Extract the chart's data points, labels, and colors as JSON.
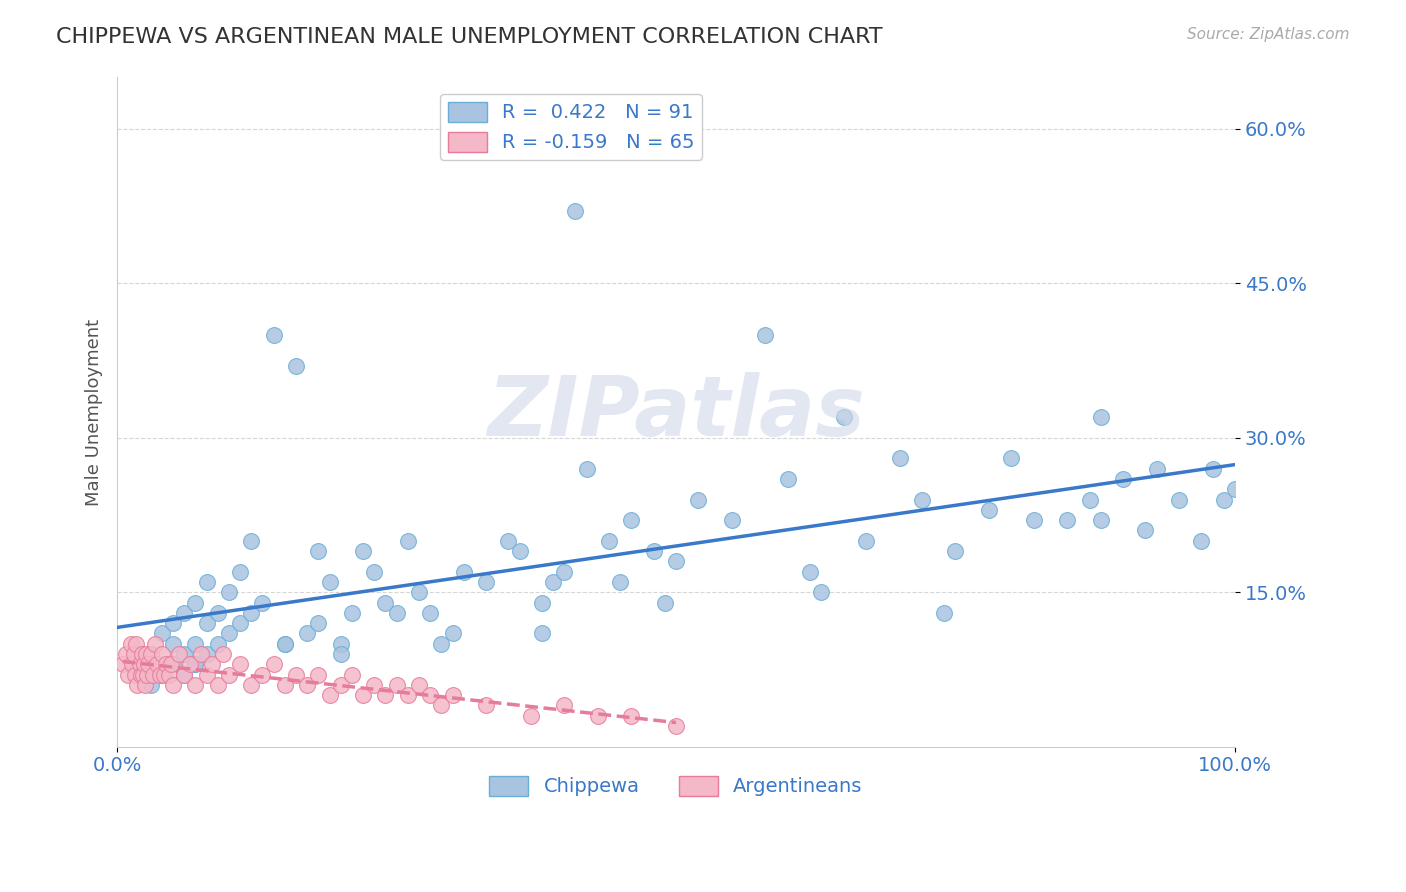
{
  "title": "CHIPPEWA VS ARGENTINEAN MALE UNEMPLOYMENT CORRELATION CHART",
  "source_text": "Source: ZipAtlas.com",
  "ylabel": "Male Unemployment",
  "xlim": [
    0.0,
    1.0
  ],
  "ylim": [
    0.0,
    0.65
  ],
  "legend_r1": "R =  0.422   N = 91",
  "legend_r2": "R = -0.159   N = 65",
  "chippewa_color": "#a8c4e0",
  "chippewa_edge": "#6aaed6",
  "argentinean_color": "#f4b8c8",
  "argentinean_edge": "#e87a9a",
  "trendline_blue": "#3a78c9",
  "trendline_pink": "#e87a9a",
  "background_color": "#ffffff",
  "grid_color": "#cccccc",
  "axis_label_color": "#3a78c9",
  "chippewa_x": [
    0.02,
    0.03,
    0.03,
    0.04,
    0.04,
    0.05,
    0.05,
    0.05,
    0.06,
    0.06,
    0.06,
    0.07,
    0.07,
    0.07,
    0.08,
    0.08,
    0.08,
    0.09,
    0.09,
    0.1,
    0.1,
    0.11,
    0.11,
    0.12,
    0.12,
    0.13,
    0.14,
    0.15,
    0.16,
    0.17,
    0.18,
    0.18,
    0.19,
    0.2,
    0.21,
    0.22,
    0.23,
    0.24,
    0.25,
    0.26,
    0.27,
    0.28,
    0.3,
    0.31,
    0.33,
    0.35,
    0.36,
    0.38,
    0.39,
    0.4,
    0.41,
    0.42,
    0.44,
    0.45,
    0.46,
    0.48,
    0.5,
    0.52,
    0.55,
    0.58,
    0.6,
    0.62,
    0.65,
    0.67,
    0.7,
    0.72,
    0.75,
    0.78,
    0.8,
    0.82,
    0.85,
    0.87,
    0.88,
    0.9,
    0.92,
    0.93,
    0.95,
    0.97,
    0.98,
    0.99,
    1.0,
    0.03,
    0.07,
    0.15,
    0.2,
    0.29,
    0.38,
    0.49,
    0.63,
    0.74,
    0.88
  ],
  "chippewa_y": [
    0.08,
    0.06,
    0.09,
    0.07,
    0.11,
    0.08,
    0.1,
    0.12,
    0.07,
    0.09,
    0.13,
    0.08,
    0.1,
    0.14,
    0.09,
    0.12,
    0.16,
    0.1,
    0.13,
    0.11,
    0.15,
    0.12,
    0.17,
    0.13,
    0.2,
    0.14,
    0.4,
    0.1,
    0.37,
    0.11,
    0.12,
    0.19,
    0.16,
    0.1,
    0.13,
    0.19,
    0.17,
    0.14,
    0.13,
    0.2,
    0.15,
    0.13,
    0.11,
    0.17,
    0.16,
    0.2,
    0.19,
    0.14,
    0.16,
    0.17,
    0.52,
    0.27,
    0.2,
    0.16,
    0.22,
    0.19,
    0.18,
    0.24,
    0.22,
    0.4,
    0.26,
    0.17,
    0.32,
    0.2,
    0.28,
    0.24,
    0.19,
    0.23,
    0.28,
    0.22,
    0.22,
    0.24,
    0.32,
    0.26,
    0.21,
    0.27,
    0.24,
    0.2,
    0.27,
    0.24,
    0.25,
    0.07,
    0.08,
    0.1,
    0.09,
    0.1,
    0.11,
    0.14,
    0.15,
    0.13,
    0.22
  ],
  "argentinean_x": [
    0.005,
    0.008,
    0.01,
    0.012,
    0.013,
    0.015,
    0.016,
    0.017,
    0.018,
    0.02,
    0.021,
    0.022,
    0.023,
    0.024,
    0.025,
    0.026,
    0.027,
    0.028,
    0.03,
    0.032,
    0.034,
    0.036,
    0.038,
    0.04,
    0.042,
    0.044,
    0.046,
    0.048,
    0.05,
    0.055,
    0.06,
    0.065,
    0.07,
    0.075,
    0.08,
    0.085,
    0.09,
    0.095,
    0.1,
    0.11,
    0.12,
    0.13,
    0.14,
    0.15,
    0.16,
    0.17,
    0.18,
    0.19,
    0.2,
    0.21,
    0.22,
    0.23,
    0.24,
    0.25,
    0.26,
    0.27,
    0.28,
    0.29,
    0.3,
    0.33,
    0.37,
    0.4,
    0.43,
    0.46,
    0.5
  ],
  "argentinean_y": [
    0.08,
    0.09,
    0.07,
    0.1,
    0.08,
    0.09,
    0.07,
    0.1,
    0.06,
    0.08,
    0.07,
    0.09,
    0.07,
    0.08,
    0.06,
    0.09,
    0.07,
    0.08,
    0.09,
    0.07,
    0.1,
    0.08,
    0.07,
    0.09,
    0.07,
    0.08,
    0.07,
    0.08,
    0.06,
    0.09,
    0.07,
    0.08,
    0.06,
    0.09,
    0.07,
    0.08,
    0.06,
    0.09,
    0.07,
    0.08,
    0.06,
    0.07,
    0.08,
    0.06,
    0.07,
    0.06,
    0.07,
    0.05,
    0.06,
    0.07,
    0.05,
    0.06,
    0.05,
    0.06,
    0.05,
    0.06,
    0.05,
    0.04,
    0.05,
    0.04,
    0.03,
    0.04,
    0.03,
    0.03,
    0.02
  ],
  "watermark": "ZIPatlas",
  "watermark_color": "#d0d8e8"
}
